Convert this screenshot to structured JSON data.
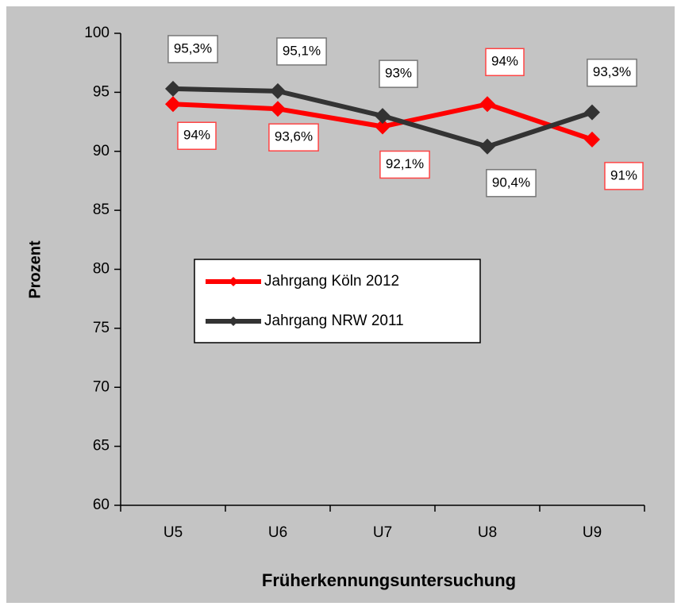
{
  "chart_data": {
    "type": "line",
    "x_label": "Früherkennungsuntersuchung",
    "y_label": "Prozent",
    "categories": [
      "U5",
      "U6",
      "U7",
      "U8",
      "U9"
    ],
    "ylim": [
      60,
      100
    ],
    "yticks": [
      60,
      65,
      70,
      75,
      80,
      85,
      90,
      95,
      100
    ],
    "legend": "center",
    "series": [
      {
        "name": "Jahrgang Köln 2012",
        "color": "#ff0000",
        "values": [
          94,
          93.6,
          92.1,
          94,
          91
        ],
        "value_labels": [
          "94%",
          "93,6%",
          "92,1%",
          "94%",
          "91%"
        ]
      },
      {
        "name": "Jahrgang NRW 2011",
        "color": "#333333",
        "values": [
          95.3,
          95.1,
          93,
          90.4,
          93.3
        ],
        "value_labels": [
          "95,3%",
          "95,1%",
          "93%",
          "90,4%",
          "93,3%"
        ]
      }
    ]
  }
}
